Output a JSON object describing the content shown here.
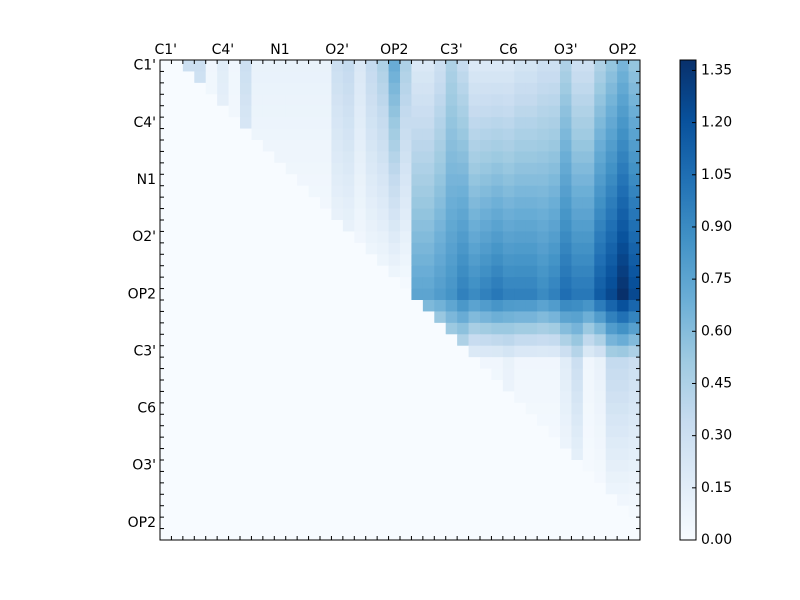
{
  "chart_data": {
    "type": "heatmap",
    "title": "",
    "xlabel": "",
    "ylabel": "",
    "matrix_size": 42,
    "x_tick_labels": [
      "C1'",
      "C4'",
      "N1",
      "O2'",
      "OP2",
      "C3'",
      "C6",
      "O3'",
      "OP2"
    ],
    "y_tick_labels": [
      "C1'",
      "C4'",
      "N1",
      "O2'",
      "OP2",
      "C3'",
      "C6",
      "O3'",
      "OP2"
    ],
    "x_tick_positions": [
      0,
      5,
      10,
      15,
      20,
      25,
      30,
      35,
      40
    ],
    "y_tick_positions": [
      0,
      5,
      10,
      15,
      20,
      25,
      30,
      35,
      40
    ],
    "colormap": "Blues",
    "colormap_stops": [
      "#f7fbff",
      "#deebf7",
      "#c6dbef",
      "#9ecae1",
      "#6baed6",
      "#4292c6",
      "#2171b5",
      "#08519c",
      "#08306b"
    ],
    "value_range": [
      0.0,
      1.38
    ],
    "colorbar": {
      "ticks": [
        0.0,
        0.15,
        0.3,
        0.45,
        0.6,
        0.75,
        0.9,
        1.05,
        1.2,
        1.35
      ],
      "tick_labels": [
        "0.00",
        "0.15",
        "0.30",
        "0.45",
        "0.60",
        "0.75",
        "0.90",
        "1.05",
        "1.20",
        "1.35"
      ]
    },
    "lower_triangle_value": 0.0,
    "row_profiles": [
      {
        "row": 0,
        "values": [
          0,
          0,
          0.3,
          0.3,
          0.05,
          0.15,
          0.05,
          0.3,
          0.1,
          0.1,
          0.1,
          0.1,
          0.1,
          0.1,
          0.1,
          0.3,
          0.35,
          0.2,
          0.35,
          0.45,
          0.7,
          0.45,
          0.2,
          0.2,
          0.3,
          0.45,
          0.35,
          0.2,
          0.2,
          0.2,
          0.2,
          0.25,
          0.25,
          0.3,
          0.3,
          0.45,
          0.3,
          0.3,
          0.45,
          0.55,
          0.65,
          0.55
        ]
      },
      {
        "row": 20,
        "values": [
          0,
          0,
          0,
          0,
          0,
          0,
          0,
          0,
          0,
          0,
          0,
          0,
          0,
          0,
          0,
          0,
          0,
          0,
          0,
          0,
          0,
          0,
          0.75,
          0.75,
          0.8,
          0.85,
          0.95,
          0.9,
          0.95,
          1.0,
          0.95,
          0.95,
          0.95,
          0.9,
          0.95,
          1.05,
          1.0,
          1.0,
          1.15,
          1.25,
          1.38,
          1.25
        ]
      },
      {
        "row": 26,
        "values": [
          0,
          0,
          0,
          0,
          0,
          0,
          0,
          0,
          0,
          0,
          0,
          0,
          0,
          0,
          0,
          0,
          0,
          0,
          0,
          0,
          0,
          0,
          0,
          0,
          0,
          0.2,
          0.2,
          0.05,
          0.05,
          0.05,
          0.1,
          0.05,
          0.05,
          0.05,
          0.05,
          0.15,
          0.3,
          0.05,
          0.1,
          0.35,
          0.35,
          0.3
        ]
      },
      {
        "row": 40,
        "values": [
          0,
          0,
          0,
          0,
          0,
          0,
          0,
          0,
          0,
          0,
          0,
          0,
          0,
          0,
          0,
          0,
          0,
          0,
          0,
          0,
          0,
          0,
          0,
          0,
          0,
          0,
          0,
          0,
          0,
          0,
          0,
          0,
          0,
          0,
          0,
          0,
          0,
          0,
          0,
          0,
          0,
          0
        ]
      }
    ]
  }
}
